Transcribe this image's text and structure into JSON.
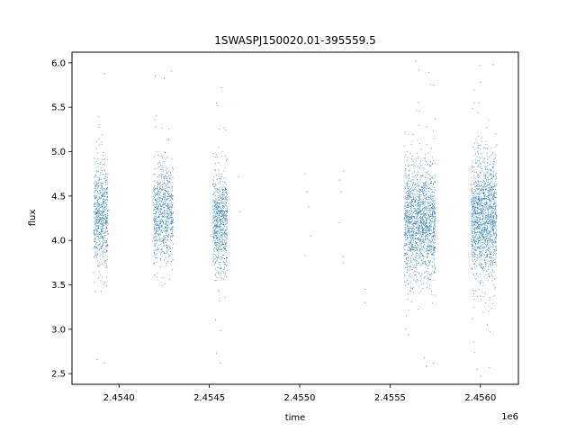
{
  "chart_data": {
    "type": "scatter",
    "title": "1SWASPJ150020.01-395559.5",
    "xlabel": "time",
    "ylabel": "flux",
    "x_offset_label": "1e6",
    "xlim": [
      2.45374,
      2.45621
    ],
    "ylim": [
      2.38,
      6.12
    ],
    "x_ticks": [
      2.454,
      2.4545,
      2.455,
      2.4555,
      2.456
    ],
    "x_tick_labels": [
      "2.4540",
      "2.4545",
      "2.4550",
      "2.4555",
      "2.4560"
    ],
    "y_ticks": [
      2.5,
      3.0,
      3.5,
      4.0,
      4.5,
      5.0,
      5.5,
      6.0
    ],
    "y_tick_labels": [
      "2.5",
      "3.0",
      "3.5",
      "4.0",
      "4.5",
      "5.0",
      "5.5",
      "6.0"
    ],
    "grid": false,
    "marker_color": "#1f77b4",
    "series": [
      {
        "clusters": [
          {
            "x_range": [
              2.45386,
              2.45394
            ],
            "center": 4.3,
            "spread": 0.28,
            "n": 650
          },
          {
            "x_range": [
              2.45419,
              2.4543
            ],
            "center": 4.3,
            "spread": 0.27,
            "n": 750
          },
          {
            "x_range": [
              2.45452,
              2.4546
            ],
            "center": 4.2,
            "spread": 0.28,
            "n": 700
          },
          {
            "x_range": [
              2.45558,
              2.45575
            ],
            "center": 4.2,
            "spread": 0.32,
            "n": 1600
          },
          {
            "x_range": [
              2.45595,
              2.45609
            ],
            "center": 4.25,
            "spread": 0.33,
            "n": 1500
          }
        ],
        "points": [
          [
            2.45467,
            4.32
          ],
          [
            2.45466,
            4.72
          ],
          [
            2.45503,
            4.75
          ],
          [
            2.45504,
            4.55
          ],
          [
            2.45505,
            4.38
          ],
          [
            2.45506,
            4.05
          ],
          [
            2.45503,
            3.83
          ],
          [
            2.45522,
            4.68
          ],
          [
            2.45523,
            4.55
          ],
          [
            2.45524,
            4.78
          ],
          [
            2.45522,
            4.2
          ],
          [
            2.45524,
            3.82
          ],
          [
            2.45524,
            3.75
          ],
          [
            2.45536,
            3.45
          ],
          [
            2.45536,
            3.3
          ],
          [
            2.45392,
            5.88
          ],
          [
            2.45388,
            2.66
          ],
          [
            2.45392,
            2.62
          ],
          [
            2.4542,
            5.85
          ],
          [
            2.45425,
            5.82
          ],
          [
            2.45454,
            5.55
          ],
          [
            2.45457,
            5.72
          ],
          [
            2.45456,
            2.62
          ],
          [
            2.45566,
            5.92
          ],
          [
            2.45574,
            5.75
          ],
          [
            2.4557,
            2.58
          ],
          [
            2.45574,
            2.62
          ],
          [
            2.45607,
            5.98
          ],
          [
            2.456,
            5.78
          ],
          [
            2.45598,
            2.55
          ],
          [
            2.45605,
            2.57
          ]
        ]
      }
    ]
  }
}
